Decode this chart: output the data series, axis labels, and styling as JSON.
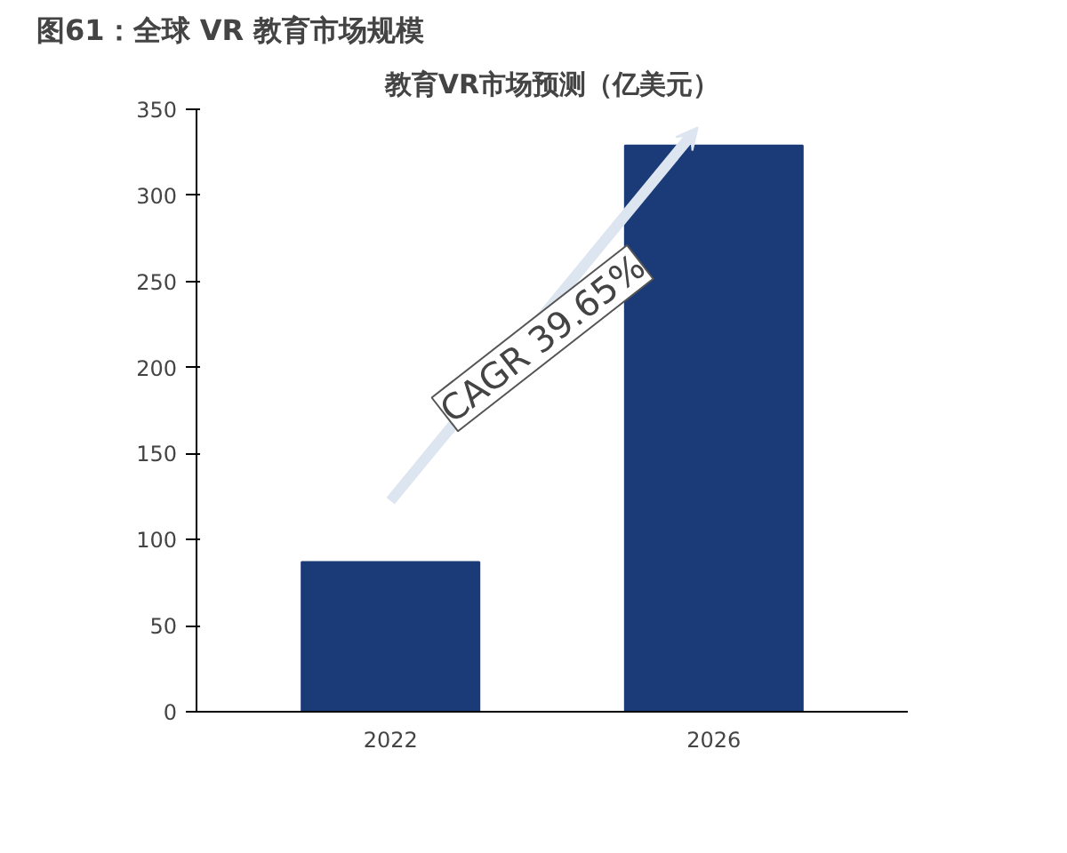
{
  "chart_data": {
    "type": "bar",
    "title": "图61：全球 VR 教育市场规模",
    "subtitle": "教育VR市场预测（亿美元）",
    "categories": [
      "2022",
      "2026"
    ],
    "values": [
      87,
      329
    ],
    "color": "#1b3a78",
    "ylim": [
      0,
      350
    ],
    "yticks": [
      0,
      50,
      100,
      150,
      200,
      250,
      300,
      350
    ],
    "grid": false,
    "annotations": [
      "CAGR 39.65%"
    ]
  }
}
